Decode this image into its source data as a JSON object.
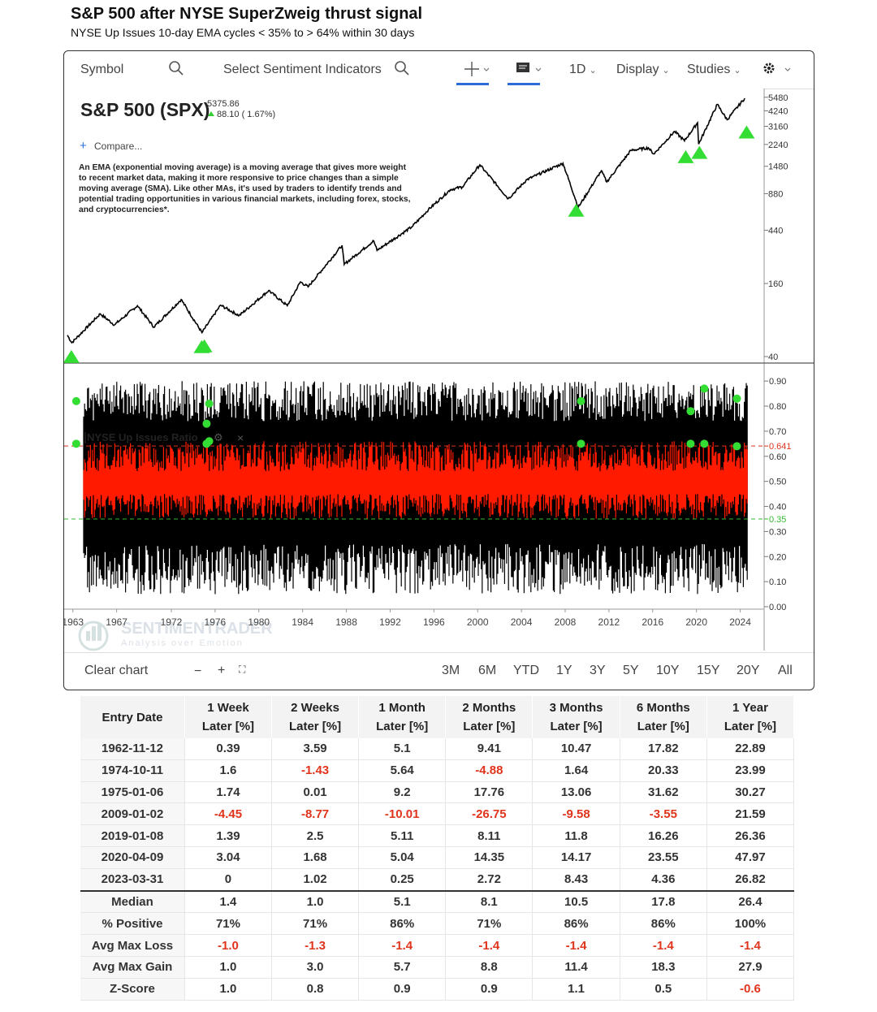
{
  "title": "S&P 500 after NYSE SuperZweig thrust signal",
  "subtitle": "NYSE Up Issues 10-day EMA cycles < 35% to > 64% within 30 days",
  "toolbar": {
    "symbol_placeholder": "Symbol",
    "sentiment_placeholder": "Select Sentiment Indicators",
    "interval": "1D",
    "display": "Display",
    "studies": "Studies"
  },
  "price_panel": {
    "name": "S&P 500 (SPX)",
    "last": "5375.86",
    "change": "88.10 ( 1.67%)",
    "compare": "Compare...",
    "note": "An EMA (exponential moving average) is a moving average that gives more weight to recent market data, making it more responsive to price changes than a simple moving average (SMA). Like other MAs, it's used by traders to identify trends and potential trading opportunities in various financial markets, including forex, stocks, and cryptocurrencies*."
  },
  "indicator_panel": {
    "name": "NYSE Up Issues Ratio",
    "watermark": "SENTIMENTRADER",
    "watermark_tagline": "Analysis over Emotion"
  },
  "bottom_bar": {
    "clear": "Clear chart",
    "ranges": [
      "3M",
      "6M",
      "YTD",
      "1Y",
      "3Y",
      "5Y",
      "10Y",
      "15Y",
      "20Y",
      "All"
    ]
  },
  "colors": {
    "price_line": "#000000",
    "signal_marker": "#33dd33",
    "indicator_line": "#000000",
    "indicator_ema": "#ff1a00",
    "upper_threshold": "#e0341c",
    "lower_threshold": "#33bb33",
    "negative_text": "#e0341c"
  },
  "chart_data": [
    {
      "type": "line",
      "title": "S&P 500 (SPX)",
      "y_scale": "log",
      "y_ticks": [
        5480,
        4240,
        3160,
        2240,
        1480,
        880,
        440,
        160,
        40
      ],
      "x_ticks": [
        "1963",
        "1967",
        "1972",
        "1976",
        "1980",
        "1984",
        "1988",
        "1992",
        "1996",
        "2000",
        "2004",
        "2008",
        "2012",
        "2016",
        "2020",
        "2024"
      ],
      "series": [
        {
          "x": [
            1962.5,
            1962.9,
            1965.5,
            1966.8,
            1968.9,
            1970.4,
            1972.9,
            1974.8,
            1976.5,
            1978.2,
            1980.9,
            1982.6,
            1983.8,
            1984.5,
            1987.6,
            1987.8,
            1990.5,
            1990.8,
            1994,
            1995.5,
            1997.5,
            1998.6,
            2000.2,
            2002.8,
            2004.5,
            2007.8,
            2009.2,
            2011.3,
            2011.8,
            2014,
            2015.6,
            2016.1,
            2018.0,
            2018.9,
            2020.1,
            2020.2,
            2021.9,
            2022.8,
            2024.4
          ],
          "y": [
            60,
            52,
            90,
            73,
            105,
            70,
            118,
            63,
            106,
            87,
            140,
            105,
            165,
            150,
            330,
            230,
            360,
            300,
            470,
            650,
            950,
            1000,
            1520,
            800,
            1150,
            1565,
            680,
            1360,
            1100,
            2000,
            2100,
            1870,
            2870,
            2400,
            3380,
            2250,
            4790,
            3580,
            5375
          ]
        }
      ],
      "signals": [
        {
          "date": "1962-11-12",
          "y": 58
        },
        {
          "date": "1974-10-11",
          "y": 70
        },
        {
          "date": "1975-01-06",
          "y": 71
        },
        {
          "date": "2009-01-02",
          "y": 931
        },
        {
          "date": "2019-01-08",
          "y": 2574
        },
        {
          "date": "2020-04-09",
          "y": 2790
        },
        {
          "date": "2023-03-31",
          "y": 4109
        }
      ],
      "signal_markers_shown": 6,
      "ylim": [
        40,
        5900
      ]
    },
    {
      "type": "line",
      "title": "NYSE Up Issues Ratio",
      "y_ticks": [
        0.9,
        0.8,
        0.7,
        0.641,
        0.6,
        0.5,
        0.4,
        0.35,
        0.3,
        0.2,
        0.1,
        0.0
      ],
      "thresholds": [
        0.641,
        0.35
      ],
      "ylim": [
        0.0,
        0.92
      ],
      "series": [
        {
          "name": "",
          "band": "raw daily",
          "low": 0.05,
          "high": 0.9
        },
        {
          "name": "",
          "band": "10-day EMA",
          "low": 0.35,
          "high": 0.66
        }
      ],
      "signals": [
        {
          "date": "1962-11-12",
          "cross_up": 0.65,
          "peak": 0.82
        },
        {
          "date": "1974-10-11",
          "cross_up": 0.65,
          "peak": 0.73
        },
        {
          "date": "1975-01-06",
          "cross_up": 0.66,
          "peak": 0.81
        },
        {
          "date": "2009-01-02",
          "cross_up": 0.65,
          "peak": 0.82
        },
        {
          "date": "2019-01-08",
          "cross_up": 0.65,
          "peak": 0.78
        },
        {
          "date": "2020-04-09",
          "cross_up": 0.65,
          "peak": 0.87
        },
        {
          "date": "2023-03-31",
          "cross_up": 0.64,
          "peak": 0.83
        }
      ]
    },
    {
      "type": "table",
      "columns": [
        [
          "Entry Date",
          ""
        ],
        [
          "1 Week",
          "Later [%]"
        ],
        [
          "2 Weeks",
          "Later [%]"
        ],
        [
          "1 Month",
          "Later [%]"
        ],
        [
          "2 Months",
          "Later [%]"
        ],
        [
          "3 Months",
          "Later [%]"
        ],
        [
          "6 Months",
          "Later [%]"
        ],
        [
          "1 Year",
          "Later [%]"
        ]
      ],
      "rows": [
        [
          "1962-11-12",
          "0.39",
          "3.59",
          "5.1",
          "9.41",
          "10.47",
          "17.82",
          "22.89"
        ],
        [
          "1974-10-11",
          "1.6",
          "-1.43",
          "5.64",
          "-4.88",
          "1.64",
          "20.33",
          "23.99"
        ],
        [
          "1975-01-06",
          "1.74",
          "0.01",
          "9.2",
          "17.76",
          "13.06",
          "31.62",
          "30.27"
        ],
        [
          "2009-01-02",
          "-4.45",
          "-8.77",
          "-10.01",
          "-26.75",
          "-9.58",
          "-3.55",
          "21.59"
        ],
        [
          "2019-01-08",
          "1.39",
          "2.5",
          "5.11",
          "8.11",
          "11.8",
          "16.26",
          "26.36"
        ],
        [
          "2020-04-09",
          "3.04",
          "1.68",
          "5.04",
          "14.35",
          "14.17",
          "23.55",
          "47.97"
        ],
        [
          "2023-03-31",
          "0",
          "1.02",
          "0.25",
          "2.72",
          "8.43",
          "4.36",
          "26.82"
        ]
      ],
      "summary": [
        [
          "Median",
          "1.4",
          "1.0",
          "5.1",
          "8.1",
          "10.5",
          "17.8",
          "26.4"
        ],
        [
          "% Positive",
          "71%",
          "71%",
          "86%",
          "71%",
          "86%",
          "86%",
          "100%"
        ],
        [
          "Avg Max Loss",
          "-1.0",
          "-1.3",
          "-1.4",
          "-1.4",
          "-1.4",
          "-1.4",
          "-1.4"
        ],
        [
          "Avg Max Gain",
          "1.0",
          "3.0",
          "5.7",
          "8.8",
          "11.4",
          "18.3",
          "27.9"
        ],
        [
          "Z-Score",
          "1.0",
          "0.8",
          "0.9",
          "0.9",
          "1.1",
          "0.5",
          "-0.6"
        ]
      ]
    }
  ]
}
